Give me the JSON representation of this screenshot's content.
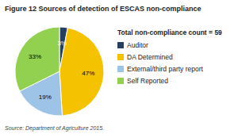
{
  "chart_data": {
    "type": "pie",
    "title": "Figure 12 Sources of detection of ESCAS non-compliance",
    "legend_title": "Total non-compliance count = 59",
    "categories": [
      "Auditor",
      "DA Determined",
      "External/third party report",
      "Self Reported"
    ],
    "values": [
      3,
      47,
      19,
      33
    ],
    "value_labels": [
      "3%",
      "47%",
      "19%",
      "33%"
    ],
    "colors": [
      "#243F60",
      "#F5C200",
      "#9DC3E6",
      "#92D050"
    ],
    "data_labels": true,
    "legend": "right",
    "source": "Source: Department of Agriculture 2015."
  }
}
